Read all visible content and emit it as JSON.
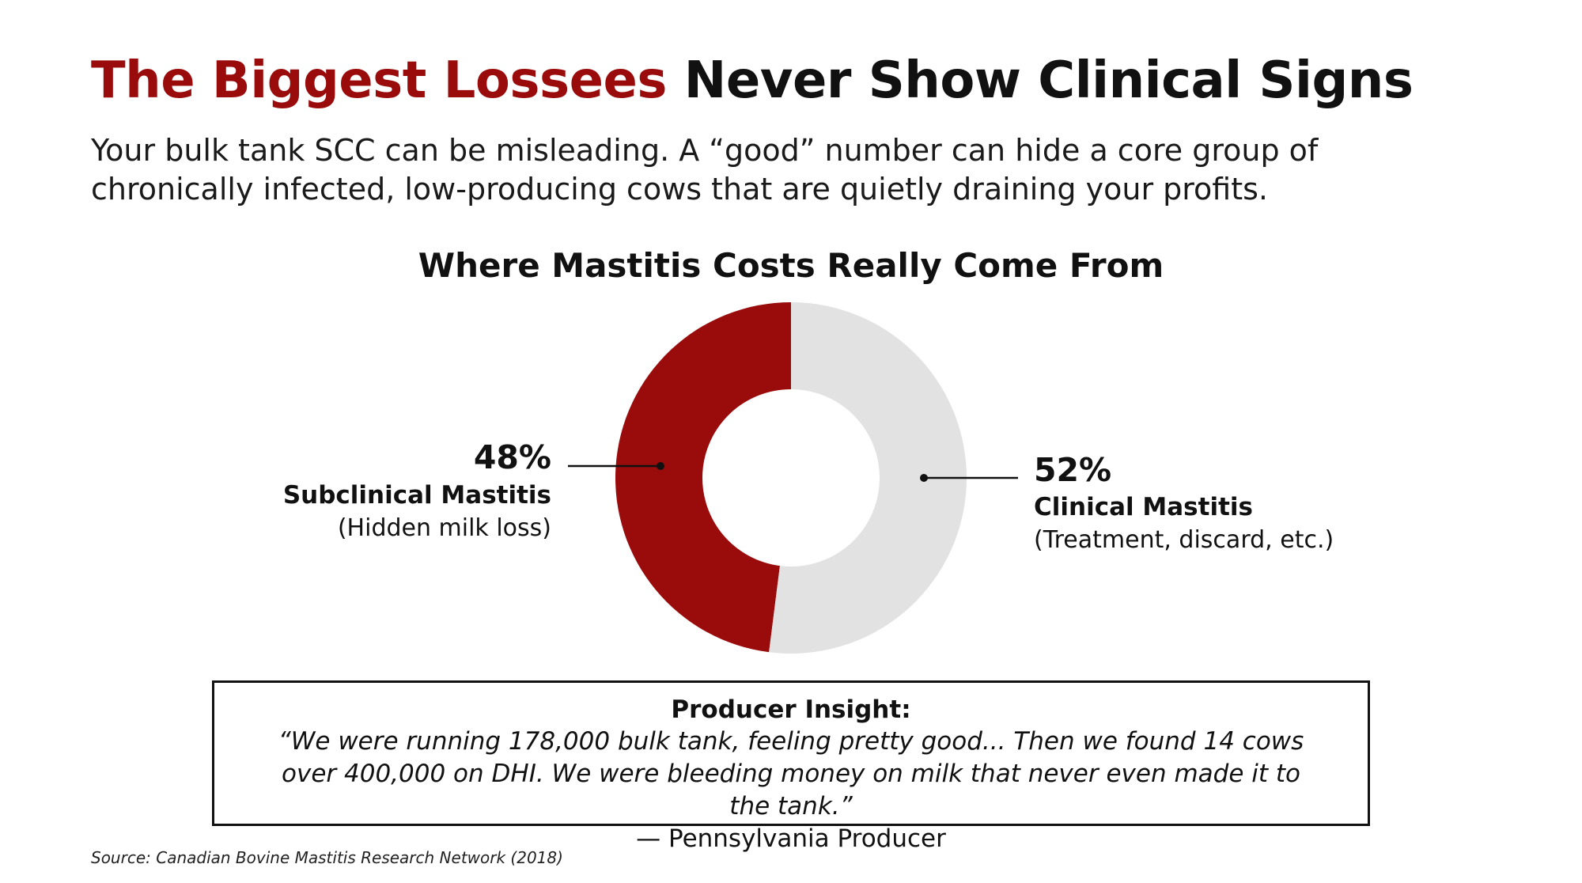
{
  "headline": {
    "accent": "The Biggest Lossees",
    "rest": "Never Show Clinical Signs"
  },
  "subtitle": "Your bulk tank SCC can be misleading. A “good” number can hide a core group of chronically infected, low-producing cows that are quietly draining your profits.",
  "colors": {
    "accent": "#9a0c0c",
    "subclinical": "#9a0c0c",
    "clinical": "#e2e2e2",
    "text": "#111111"
  },
  "chart_data": {
    "type": "pie",
    "variant": "donut",
    "title": "Where Mastitis Costs Really Come From",
    "slices": [
      {
        "name": "Subclinical Mastitis",
        "value": 48,
        "value_label": "48%",
        "note": "(Hidden milk loss)",
        "color": "#9a0c0c",
        "label_side": "left"
      },
      {
        "name": "Clinical Mastitis",
        "value": 52,
        "value_label": "52%",
        "note": "(Treatment, discard, etc.)",
        "color": "#e2e2e2",
        "label_side": "right"
      }
    ],
    "start": "top",
    "direction": "counterclockwise-from-top for first slice"
  },
  "insight": {
    "title": "Producer Insight:",
    "quote": "“We were running 178,000 bulk tank, feeling pretty good... Then we found 14 cows over 400,000 on DHI. We were bleeding money on milk that never even made it to the tank.”",
    "attribution": "— Pennsylvania Producer"
  },
  "source": "Source: Canadian Bovine Mastitis Research Network (2018)"
}
